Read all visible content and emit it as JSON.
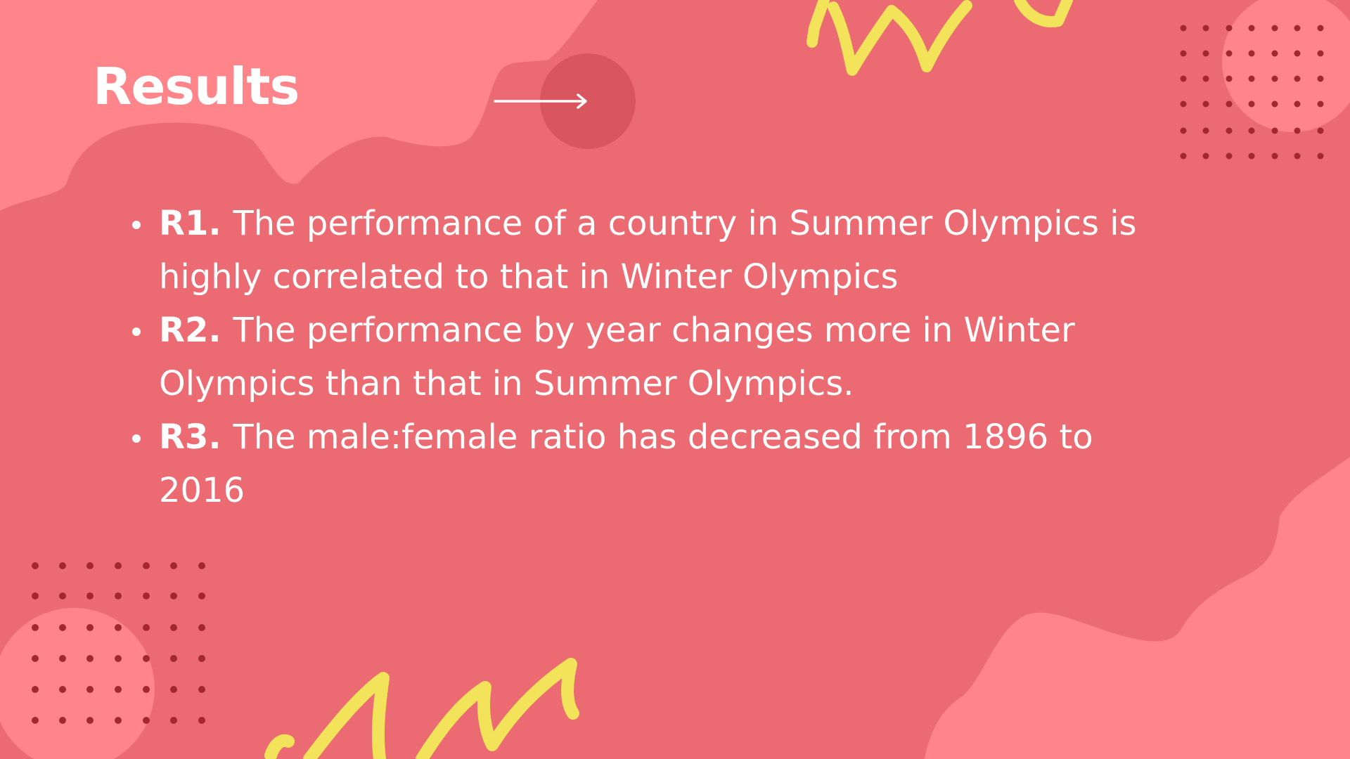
{
  "slide": {
    "title": "Results",
    "colors": {
      "background": "#ec6a71",
      "light_blob": "#ff858b",
      "dark_circle": "#d9565e",
      "dots": "#a3282b",
      "scribble": "#f2e35a",
      "text": "#ffffff"
    },
    "arrow_icon": "right-arrow-icon",
    "results": [
      {
        "code": "R1.",
        "text": "The performance of a country in Summer Olympics is highly correlated to that in Winter Olympics"
      },
      {
        "code": "R2.",
        "text": "The performance by year changes more in Winter Olympics than that in Summer Olympics."
      },
      {
        "code": "R3.",
        "text": "The male:female ratio has decreased from 1896 to 2016"
      }
    ]
  }
}
